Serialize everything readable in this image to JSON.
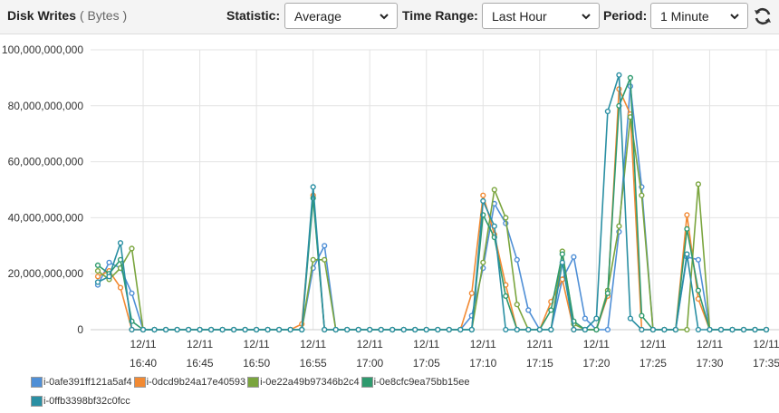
{
  "header": {
    "title": "Disk Writes",
    "unit": "( Bytes )",
    "statistic_label": "Statistic:",
    "statistic_value": "Average",
    "time_range_label": "Time Range:",
    "time_range_value": "Last Hour",
    "period_label": "Period:",
    "period_value": "1 Minute",
    "refresh_icon": "refresh-icon"
  },
  "chart_data": {
    "type": "line",
    "ylim": [
      0,
      100000000000
    ],
    "yticks": [
      0,
      20000000000,
      40000000000,
      60000000000,
      80000000000,
      100000000000
    ],
    "ytick_labels": [
      "0",
      "20,000,000,000",
      "40,000,000,000",
      "60,000,000,000",
      "80,000,000,000",
      "100,000,000,000"
    ],
    "xlim": [
      "16:36",
      "17:35"
    ],
    "xticks": [
      {
        "date": "12/11",
        "time": "16:40"
      },
      {
        "date": "12/11",
        "time": "16:45"
      },
      {
        "date": "12/11",
        "time": "16:50"
      },
      {
        "date": "12/11",
        "time": "16:55"
      },
      {
        "date": "12/11",
        "time": "17:00"
      },
      {
        "date": "12/11",
        "time": "17:05"
      },
      {
        "date": "12/11",
        "time": "17:10"
      },
      {
        "date": "12/11",
        "time": "17:15"
      },
      {
        "date": "12/11",
        "time": "17:20"
      },
      {
        "date": "12/11",
        "time": "17:25"
      },
      {
        "date": "12/11",
        "time": "17:30"
      },
      {
        "date": "12/11",
        "time": "17:35"
      }
    ],
    "grid": true,
    "legend_position": "bottom-left",
    "x": [
      "16:36",
      "16:37",
      "16:38",
      "16:39",
      "16:40",
      "16:41",
      "16:42",
      "16:43",
      "16:44",
      "16:45",
      "16:46",
      "16:47",
      "16:48",
      "16:49",
      "16:50",
      "16:51",
      "16:52",
      "16:53",
      "16:54",
      "16:55",
      "16:56",
      "16:57",
      "16:58",
      "16:59",
      "17:00",
      "17:01",
      "17:02",
      "17:03",
      "17:04",
      "17:05",
      "17:06",
      "17:07",
      "17:08",
      "17:09",
      "17:10",
      "17:11",
      "17:12",
      "17:13",
      "17:14",
      "17:15",
      "17:16",
      "17:17",
      "17:18",
      "17:19",
      "17:20",
      "17:21",
      "17:22",
      "17:23",
      "17:24",
      "17:25",
      "17:26",
      "17:27",
      "17:28",
      "17:29",
      "17:30",
      "17:31",
      "17:32",
      "17:33",
      "17:34",
      "17:35"
    ],
    "series": [
      {
        "name": "i-0afe391ff121a5af4",
        "color": "#4f8fd6",
        "values": [
          16,
          24,
          22,
          13,
          0,
          0,
          0,
          0,
          0,
          0,
          0,
          0,
          0,
          0,
          0,
          0,
          0,
          0,
          0,
          22,
          30,
          0,
          0,
          0,
          0,
          0,
          0,
          0,
          0,
          0,
          0,
          0,
          0,
          5,
          22,
          45,
          38,
          25,
          7,
          0,
          0,
          18,
          26,
          4,
          0,
          0,
          35,
          87,
          51,
          0,
          0,
          0,
          26,
          25,
          0,
          0,
          0,
          0,
          0,
          0
        ]
      },
      {
        "name": "i-0dcd9b24a17e40593",
        "color": "#f28a33",
        "values": [
          19,
          21,
          15,
          0,
          0,
          0,
          0,
          0,
          0,
          0,
          0,
          0,
          0,
          0,
          0,
          0,
          0,
          0,
          2,
          48,
          0,
          0,
          0,
          0,
          0,
          0,
          0,
          0,
          0,
          0,
          0,
          0,
          0,
          13,
          48,
          34,
          16,
          0,
          0,
          0,
          10,
          18,
          0,
          0,
          0,
          12,
          86,
          77,
          0,
          0,
          0,
          0,
          41,
          11,
          0,
          0,
          0,
          0,
          0,
          0
        ]
      },
      {
        "name": "i-0e22a49b97346b2c4",
        "color": "#7aa53e",
        "values": [
          21,
          18,
          22,
          29,
          0,
          0,
          0,
          0,
          0,
          0,
          0,
          0,
          0,
          0,
          0,
          0,
          0,
          0,
          0,
          25,
          25,
          0,
          0,
          0,
          0,
          0,
          0,
          0,
          0,
          0,
          0,
          0,
          0,
          0,
          24,
          50,
          40,
          9,
          0,
          0,
          0,
          28,
          2,
          0,
          0,
          14,
          37,
          76,
          48,
          0,
          0,
          0,
          0,
          52,
          0,
          0,
          0,
          0,
          0,
          0
        ]
      },
      {
        "name": "i-0e8cfc9ea75bb15ee",
        "color": "#2f9a6e",
        "values": [
          23,
          20,
          25,
          3,
          0,
          0,
          0,
          0,
          0,
          0,
          0,
          0,
          0,
          0,
          0,
          0,
          0,
          0,
          0,
          47,
          0,
          0,
          0,
          0,
          0,
          0,
          0,
          0,
          0,
          0,
          0,
          0,
          0,
          0,
          41,
          33,
          12,
          0,
          0,
          0,
          7,
          27,
          3,
          0,
          0,
          13,
          80,
          90,
          5,
          0,
          0,
          0,
          36,
          14,
          0,
          0,
          0,
          0,
          0,
          0
        ]
      },
      {
        "name": "i-0ffb3398bf32c0fcc",
        "color": "#2a8fa3",
        "values": [
          17,
          19,
          31,
          0,
          0,
          0,
          0,
          0,
          0,
          0,
          0,
          0,
          0,
          0,
          0,
          0,
          0,
          0,
          0,
          51,
          0,
          0,
          0,
          0,
          0,
          0,
          0,
          0,
          0,
          0,
          0,
          0,
          0,
          0,
          46,
          37,
          0,
          0,
          0,
          0,
          0,
          24,
          0,
          0,
          4,
          78,
          91,
          4,
          0,
          0,
          0,
          0,
          27,
          0,
          0,
          0,
          0,
          0,
          0,
          0
        ]
      }
    ],
    "value_scale": "billions of bytes"
  }
}
